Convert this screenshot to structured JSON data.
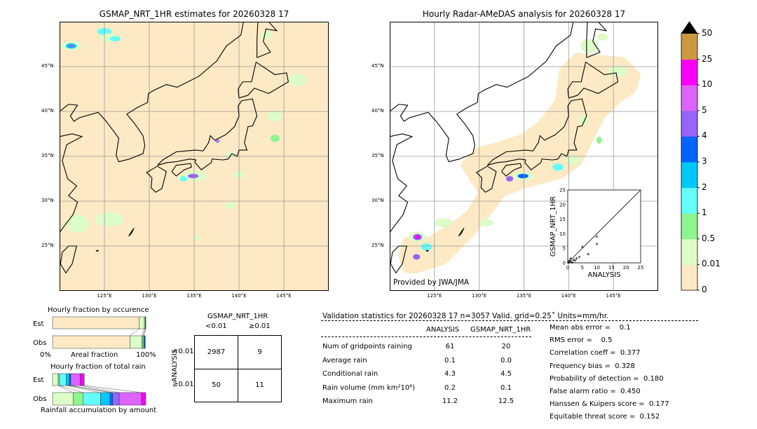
{
  "left_map": {
    "title": "GSMAP_NRT_1HR estimates for 20260328 17"
  },
  "right_map": {
    "title": "Hourly Radar-AMeDAS analysis for 20260328 17",
    "credit": "Provided by JWA/JMA"
  },
  "map_axes": {
    "lon_ticks": [
      "125°E",
      "130°E",
      "135°E",
      "140°E",
      "145°E"
    ],
    "lat_ticks": [
      "45°N",
      "40°N",
      "35°N",
      "30°N",
      "25°N"
    ],
    "lon_values": [
      125,
      130,
      135,
      140,
      145
    ],
    "lat_values": [
      45,
      40,
      35,
      30,
      25
    ],
    "lon_range": [
      120,
      150
    ],
    "lat_range": [
      20,
      50
    ]
  },
  "colorbar": {
    "labels": [
      "0",
      "0.01",
      "0.5",
      "1",
      "2",
      "3",
      "4",
      "5",
      "10",
      "25",
      "50"
    ],
    "colors": [
      "#fde9c4",
      "#dcfcc8",
      "#8ef58e",
      "#64fbfb",
      "#00c8f8",
      "#0064fa",
      "#9664f8",
      "#dc64fa",
      "#fa00fa",
      "#cc9940"
    ],
    "extend_color": "#000000"
  },
  "chart_data": {
    "type": "scatter",
    "xlabel": "ANALYSIS",
    "ylabel": "GSMAP_NRT_1HR",
    "xlim": [
      0,
      25
    ],
    "ylim": [
      0,
      25
    ],
    "ticks": [
      "0",
      "5",
      "10",
      "15",
      "20",
      "25"
    ],
    "points": [
      [
        0.2,
        0.1
      ],
      [
        0.5,
        0.3
      ],
      [
        1,
        0.5
      ],
      [
        1.5,
        0.2
      ],
      [
        2,
        1
      ],
      [
        2.5,
        0.8
      ],
      [
        3,
        1.5
      ],
      [
        4,
        2
      ],
      [
        5,
        5.5
      ],
      [
        7,
        3
      ],
      [
        10,
        9
      ],
      [
        10,
        6.5
      ],
      [
        1,
        1.5
      ],
      [
        0.5,
        0.8
      ]
    ]
  },
  "occurrence": {
    "title": "Hourly fraction by occurence",
    "rows": [
      "Est",
      "Obs"
    ],
    "xlabel": "Areal fraction",
    "x_min": "0%",
    "x_max": "100%",
    "est": [
      [
        0.93,
        "#fde9c4"
      ],
      [
        0.055,
        "#dcfcc8"
      ],
      [
        0.01,
        "#8ef58e"
      ],
      [
        0.005,
        "#000000"
      ]
    ],
    "obs": [
      [
        0.83,
        "#fde9c4"
      ],
      [
        0.13,
        "#dcfcc8"
      ],
      [
        0.01,
        "#8ef58e"
      ],
      [
        0.01,
        "#64fbfb"
      ],
      [
        0.008,
        "#00c8f8"
      ],
      [
        0.007,
        "#0064fa"
      ]
    ]
  },
  "total_rain": {
    "title": "Hourly fraction of total rain",
    "rows": [
      "Est",
      "Obs"
    ],
    "xlabel": "Rainfall accumulation by amount",
    "est": [
      [
        0.06,
        "#dcfcc8"
      ],
      [
        0.015,
        "#8ef58e"
      ],
      [
        0.07,
        "#64fbfb"
      ],
      [
        0.035,
        "#00c8f8"
      ],
      [
        0.015,
        "#0064fa"
      ],
      [
        0.1,
        "#dc64fa"
      ],
      [
        0.045,
        "#fa00fa"
      ]
    ],
    "obs": [
      [
        0.22,
        "#dcfcc8"
      ],
      [
        0.105,
        "#8ef58e"
      ],
      [
        0.19,
        "#64fbfb"
      ],
      [
        0.1,
        "#00c8f8"
      ],
      [
        0.03,
        "#0064fa"
      ],
      [
        0.07,
        "#9664f8"
      ],
      [
        0.24,
        "#dc64fa"
      ],
      [
        0.045,
        "#fa00fa"
      ]
    ]
  },
  "contingency": {
    "title": "GSMAP_NRT_1HR",
    "col_headers": [
      "<0.01",
      "≥0.01"
    ],
    "row_label": "ANALYSIS",
    "row_headers": [
      "<0.01",
      "≥0.01"
    ],
    "cells": [
      [
        "2987",
        "9"
      ],
      [
        "50",
        "11"
      ]
    ]
  },
  "validation": {
    "header": "Validation statistics for 20260328 17  n=3057 Valid. grid=0.25˚ Units=mm/hr.",
    "columns": [
      "ANALYSIS",
      "GSMAP_NRT_1HR"
    ],
    "rows": [
      {
        "label": "Num of gridpoints raining",
        "a": "61",
        "g": "20"
      },
      {
        "label": "Average rain",
        "a": "0.1",
        "g": "0.0"
      },
      {
        "label": "Conditional rain",
        "a": "4.3",
        "g": "4.5"
      },
      {
        "label": "Rain volume (mm km²10⁶)",
        "a": "0.2",
        "g": "0.1"
      },
      {
        "label": "Maximum rain",
        "a": "11.2",
        "g": "12.5"
      }
    ],
    "scores": [
      "Mean abs error =    0.1",
      "RMS error =    0.5",
      "Correlation coeff =  0.377",
      "Frequency bias =  0.328",
      "Probability of detection =  0.180",
      "False alarm ratio =  0.450",
      "Hanssen & Kuipers score =  0.177",
      "Equitable threat score =  0.152"
    ]
  }
}
